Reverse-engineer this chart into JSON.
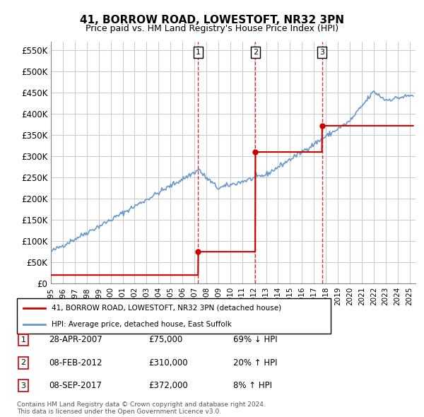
{
  "title": "41, BORROW ROAD, LOWESTOFT, NR32 3PN",
  "subtitle": "Price paid vs. HM Land Registry's House Price Index (HPI)",
  "ylabel_ticks": [
    "£0",
    "£50K",
    "£100K",
    "£150K",
    "£200K",
    "£250K",
    "£300K",
    "£350K",
    "£400K",
    "£450K",
    "£500K",
    "£550K"
  ],
  "ytick_values": [
    0,
    50000,
    100000,
    150000,
    200000,
    250000,
    300000,
    350000,
    400000,
    450000,
    500000,
    550000
  ],
  "ylim": [
    0,
    570000
  ],
  "xlim_start": 1995.0,
  "xlim_end": 2025.5,
  "sales": [
    {
      "date_num": 2007.32,
      "price": 75000,
      "label": "1"
    },
    {
      "date_num": 2012.1,
      "price": 310000,
      "label": "2"
    },
    {
      "date_num": 2017.68,
      "price": 372000,
      "label": "3"
    }
  ],
  "sale_dates_str": [
    "28-APR-2007",
    "08-FEB-2012",
    "08-SEP-2017"
  ],
  "sale_prices_str": [
    "£75,000",
    "£310,000",
    "£372,000"
  ],
  "sale_hpi_str": [
    "69% ↓ HPI",
    "20% ↑ HPI",
    "8% ↑ HPI"
  ],
  "legend_property": "41, BORROW ROAD, LOWESTOFT, NR32 3PN (detached house)",
  "legend_hpi": "HPI: Average price, detached house, East Suffolk",
  "footer": "Contains HM Land Registry data © Crown copyright and database right 2024.\nThis data is licensed under the Open Government Licence v3.0.",
  "property_color": "#cc0000",
  "hpi_color": "#6699cc",
  "background_color": "#ffffff",
  "grid_color": "#cccccc",
  "vline_color": "#cc0000"
}
